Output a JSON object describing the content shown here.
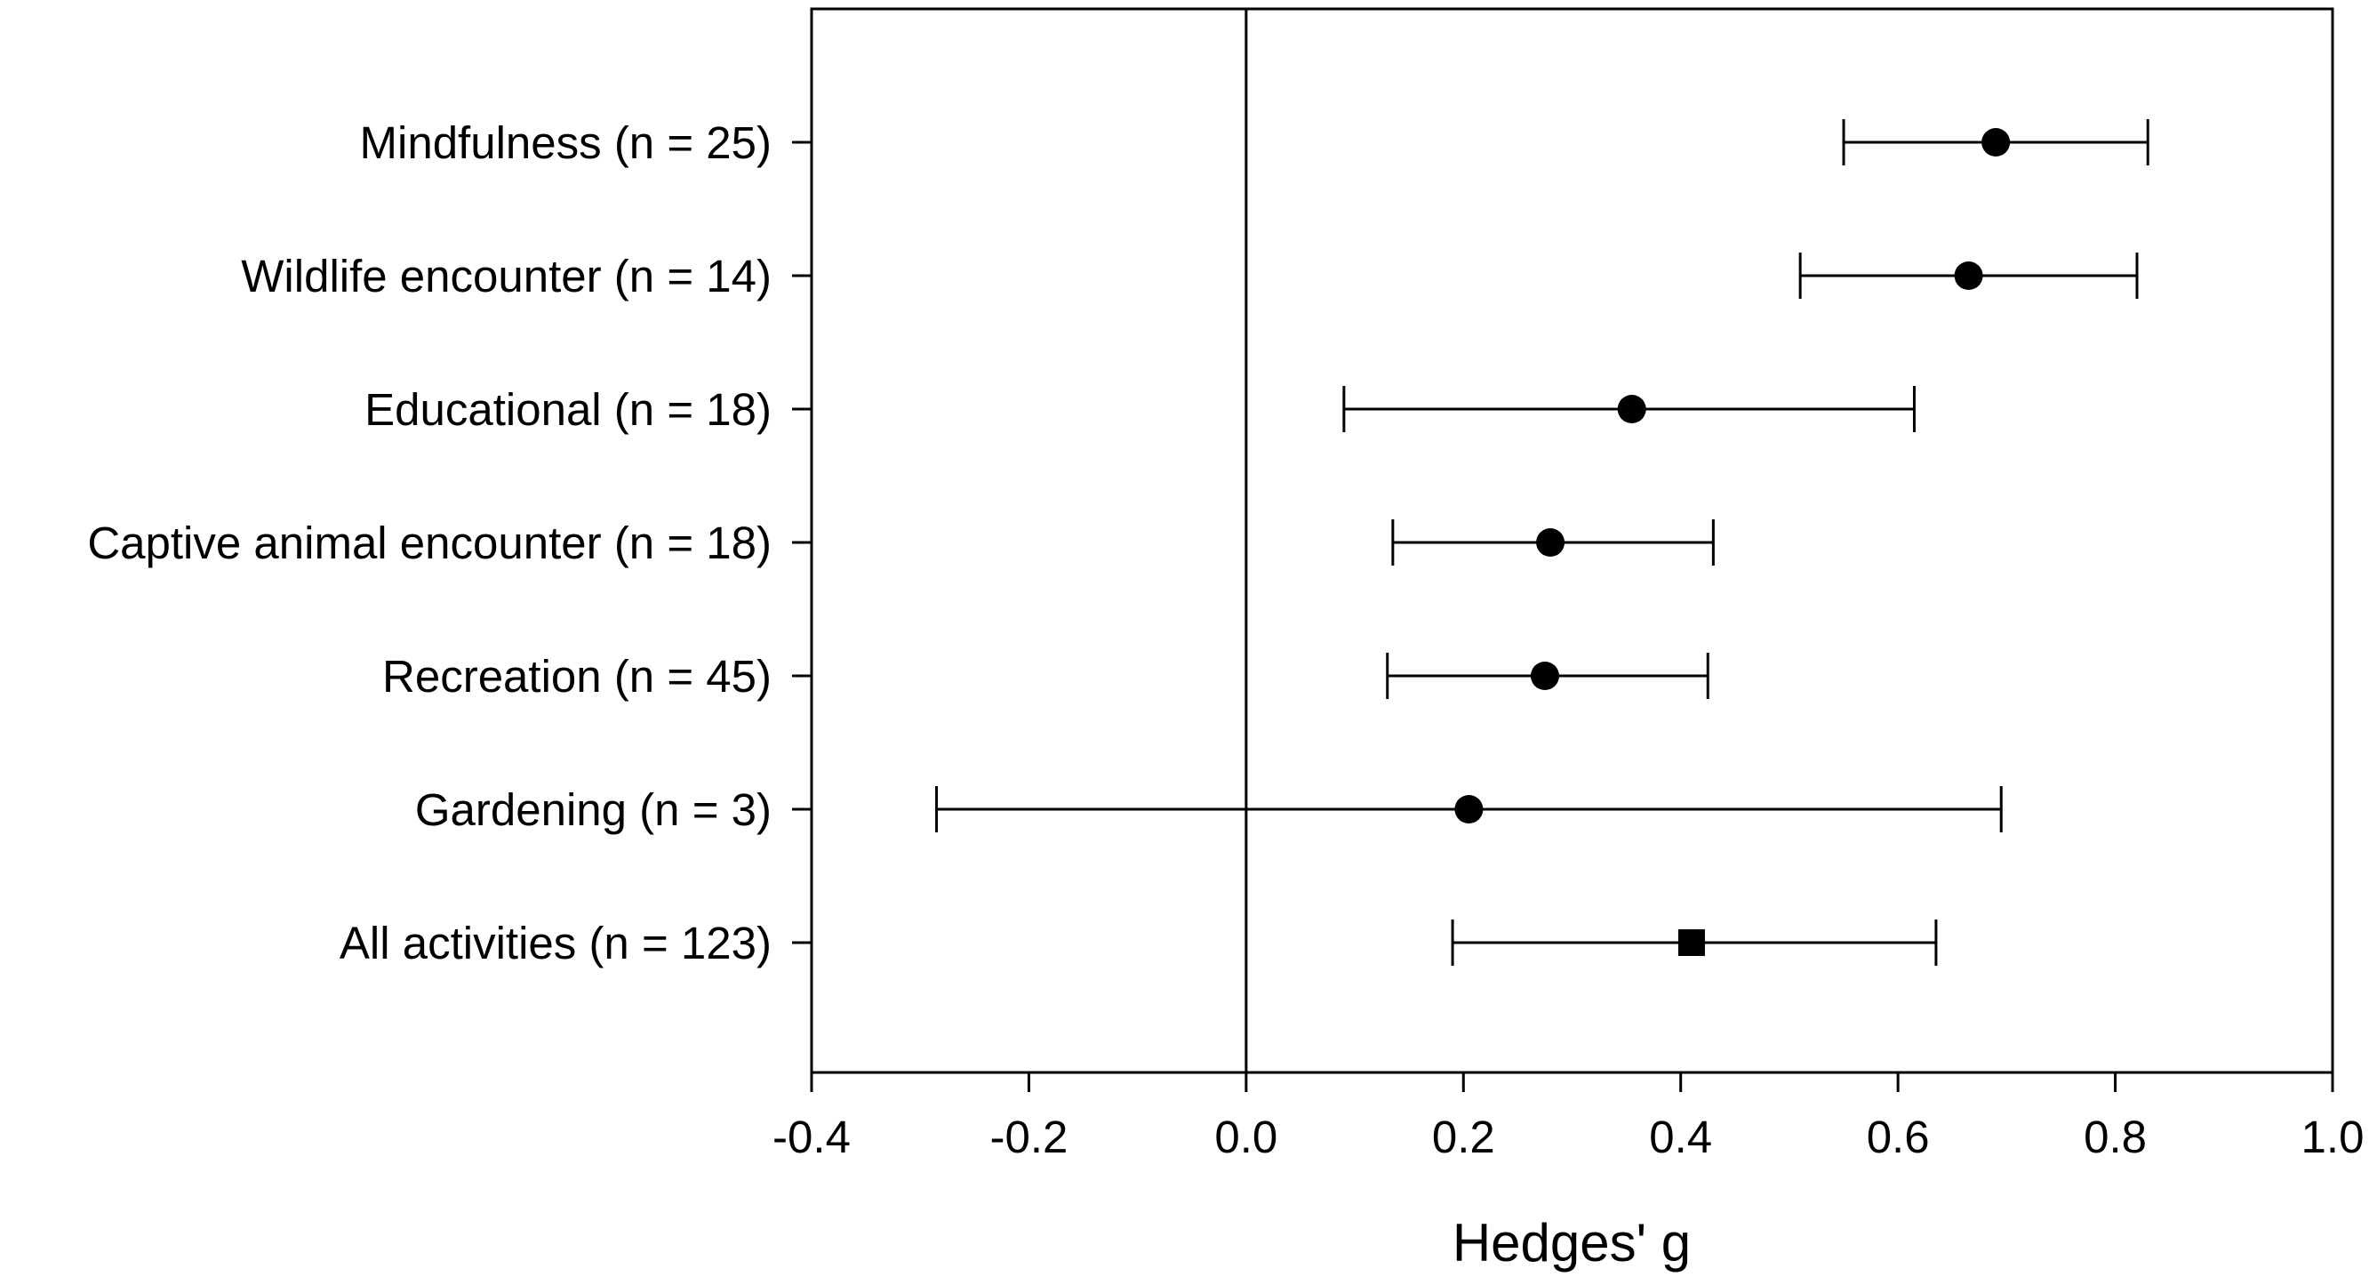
{
  "chart_data": {
    "type": "forest",
    "xlabel": "Hedges' g",
    "xlim": [
      -0.4,
      1.0
    ],
    "xticks": [
      -0.4,
      -0.2,
      0.0,
      0.2,
      0.4,
      0.6,
      0.8,
      1.0
    ],
    "xtick_labels": [
      "-0.4",
      "-0.2",
      "0.0",
      "0.2",
      "0.4",
      "0.6",
      "0.8",
      "1.0"
    ],
    "reference_line": 0.0,
    "grid": false,
    "legend": "none",
    "rows": [
      {
        "label": "Mindfulness (n = 25)",
        "estimate": 0.69,
        "ci_low": 0.55,
        "ci_high": 0.83,
        "marker": "circle"
      },
      {
        "label": "Wildlife encounter (n = 14)",
        "estimate": 0.665,
        "ci_low": 0.51,
        "ci_high": 0.82,
        "marker": "circle"
      },
      {
        "label": "Educational (n = 18)",
        "estimate": 0.355,
        "ci_low": 0.09,
        "ci_high": 0.615,
        "marker": "circle"
      },
      {
        "label": "Captive animal encounter (n = 18)",
        "estimate": 0.28,
        "ci_low": 0.135,
        "ci_high": 0.43,
        "marker": "circle"
      },
      {
        "label": "Recreation (n = 45)",
        "estimate": 0.275,
        "ci_low": 0.13,
        "ci_high": 0.425,
        "marker": "circle"
      },
      {
        "label": "Gardening (n = 3)",
        "estimate": 0.205,
        "ci_low": -0.285,
        "ci_high": 0.695,
        "marker": "circle"
      },
      {
        "label": "All activities (n = 123)",
        "estimate": 0.41,
        "ci_low": 0.19,
        "ci_high": 0.635,
        "marker": "square"
      }
    ],
    "colors": {
      "marker": "#000000",
      "line": "#000000",
      "background": "#ffffff"
    }
  }
}
